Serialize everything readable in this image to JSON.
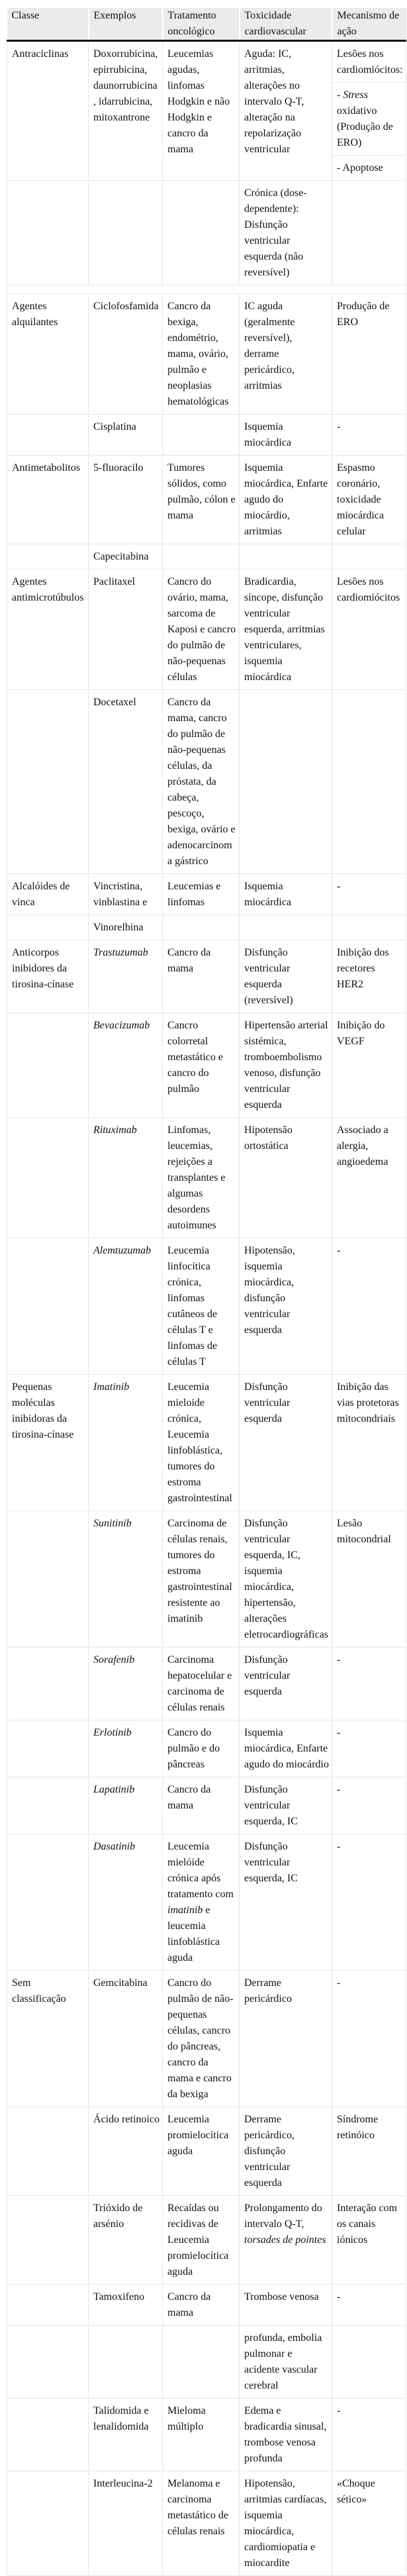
{
  "table": {
    "headers": [
      "Classe",
      "Exemplos",
      "Tratamento oncológico",
      "Toxicidade cardiovascular",
      "Mecanismo de ação"
    ],
    "rows": [
      {
        "cells": [
          "Antraciclinas",
          "Doxorrubicina, epirrubicina, daunorrubicina, idarrubicina, mitoxantrone",
          "Leucemias agudas, linfomas Hodgkin e não Hodgkin e cancro da mama",
          "Aguda: IC, arritmias, alterações no intervalo Q-T, alteração na repolarização ventricular",
          {
            "subcells": [
              {
                "segments": [
                  {
                    "text": "Lesões nos cardiomiócitos:",
                    "italic": false
                  }
                ]
              },
              {
                "segments": [
                  {
                    "text": "- ",
                    "italic": false
                  },
                  {
                    "text": "Stress",
                    "italic": true
                  },
                  {
                    "text": " oxidativo (Produção de ERO)",
                    "italic": false
                  }
                ]
              },
              {
                "segments": [
                  {
                    "text": "- Apoptose",
                    "italic": false
                  }
                ]
              }
            ]
          }
        ]
      },
      {
        "cells": [
          "",
          "",
          "",
          "Crónica (dose-dependente): Disfunção ventricular esquerda (não reversível)",
          ""
        ]
      },
      {
        "spacer": true,
        "cells": []
      },
      {
        "cells": [
          "Agentes alquilantes",
          "Ciclofosfamida",
          "Cancro da bexiga, endométrio, mama, ovário, pulmão e neoplasias hematológicas",
          "IC aguda (geralmente reversível), derrame pericárdico, arritmias",
          "Produção de ERO"
        ]
      },
      {
        "cells": [
          "",
          "Cisplatina",
          "",
          "Isquemia miocárdica",
          "-"
        ]
      },
      {
        "cells": [
          "Antimetabolitos",
          "5-fluoracilo",
          "Tumores sólidos, como pulmão, cólon e mama",
          "Isquemia miocárdica, Enfarte agudo do miocárdio, arritmias",
          "Espasmo coronário, toxicidade miocárdica celular"
        ]
      },
      {
        "cells": [
          "",
          "Capecitabina",
          "",
          "",
          ""
        ]
      },
      {
        "cells": [
          "Agentes antimicrotúbulos",
          "Paclitaxel",
          "Cancro do ovário, mama, sarcoma de Kaposi e cancro do pulmão de não-pequenas células",
          "Bradicardia, síncope, disfunção ventricular esquerda, arritmias ventriculares, isquemia miocárdica",
          "Lesões nos cardiomiócitos"
        ]
      },
      {
        "cells": [
          "",
          "Docetaxel",
          "Cancro da mama, cancro do pulmão de não-pequenas células, da próstata, da cabeça, pescoço, bexiga, ovário e adenocarcinoma gástrico",
          "",
          ""
        ]
      },
      {
        "cells": [
          "Alcalóides de vinca",
          "Vincristina, vinblastina e",
          "Leucemias e linfomas",
          "Isquemia miocárdica",
          "-"
        ]
      },
      {
        "cells": [
          "",
          "Vinorelbina",
          "",
          "",
          ""
        ]
      },
      {
        "cells": [
          "Anticorpos inibidores da tirosina-cínase",
          {
            "segments": [
              {
                "text": "Trastuzumab",
                "italic": true
              }
            ]
          },
          "Cancro da mama",
          "Disfunção ventricular esquerda (reversível)",
          "Inibição dos recetores HER2"
        ]
      },
      {
        "cells": [
          "",
          {
            "segments": [
              {
                "text": "Bevacizumab",
                "italic": true
              }
            ]
          },
          "Cancro colorretal metastático e cancro do pulmão",
          "Hipertensão arterial sistémica, tromboembolismo venoso, disfunção ventricular esquerda",
          "Inibição do VEGF"
        ]
      },
      {
        "cells": [
          "",
          {
            "segments": [
              {
                "text": "Rituximab",
                "italic": true
              }
            ]
          },
          "Linfomas, leucemias, rejeições a transplantes e algumas desordens autoimunes",
          "Hipotensão ortostática",
          "Associado a alergia, angioedema"
        ]
      },
      {
        "cells": [
          "",
          {
            "segments": [
              {
                "text": "Alemtuzumab",
                "italic": true
              }
            ]
          },
          "Leucemia linfocítica crónica, linfomas cutâneos de células T e linfomas de células T",
          "Hipotensão, isquemia miocárdica, disfunção ventricular esquerda",
          "-"
        ]
      },
      {
        "cells": [
          "Pequenas moléculas inibidoras da tirosina-cínase",
          {
            "segments": [
              {
                "text": "Imatinib",
                "italic": true
              }
            ]
          },
          "Leucemia mieloide crónica, Leucemia linfoblástica, tumores do estroma gastrointestinal",
          "Disfunção ventricular esquerda",
          "Inibição das vias protetoras mitocondriais"
        ]
      },
      {
        "cells": [
          "",
          {
            "segments": [
              {
                "text": "Sunitinib",
                "italic": true
              }
            ]
          },
          "Carcinoma de células renais, tumores do estroma gastrointestinal resistente ao imatinib",
          "Disfunção ventricular esquerda, IC, isquemia miocárdica, hipertensão, alterações eletrocardiográficas",
          "Lesão mitocondrial"
        ]
      },
      {
        "cells": [
          "",
          {
            "segments": [
              {
                "text": "Sorafenib",
                "italic": true
              }
            ]
          },
          "Carcinoma hepatocelular e carcinoma de células renais",
          "Disfunção ventricular esquerda",
          "-"
        ]
      },
      {
        "cells": [
          "",
          {
            "segments": [
              {
                "text": "Erlotinib",
                "italic": true
              }
            ]
          },
          "Cancro do pulmão e do pâncreas",
          "Isquemia miocárdica, Enfarte agudo do miocárdio",
          "-"
        ]
      },
      {
        "cells": [
          "",
          {
            "segments": [
              {
                "text": "Lapatinib",
                "italic": true
              }
            ]
          },
          "Cancro da mama",
          "Disfunção ventricular esquerda, IC",
          "-"
        ]
      },
      {
        "cells": [
          "",
          {
            "segments": [
              {
                "text": "Dasatinib",
                "italic": true
              }
            ]
          },
          {
            "segments": [
              {
                "text": "Leucemia mielóide crónica após tratamento com ",
                "italic": false
              },
              {
                "text": "imatinib",
                "italic": true
              },
              {
                "text": " e leucemia linfoblástica aguda",
                "italic": false
              }
            ]
          },
          "Disfunção ventricular esquerda, IC",
          "-"
        ]
      },
      {
        "cells": [
          "Sem classificação",
          "Gemcitabina",
          "Cancro do pulmão de não-pequenas células, cancro do pâncreas, cancro da mama e cancro da bexiga",
          "Derrame pericárdico",
          "-"
        ]
      },
      {
        "cells": [
          "",
          "Ácido retinoico",
          "Leucemia promielocítica aguda",
          "Derrame pericárdico, disfunção ventricular esquerda",
          "Síndrome retinóico"
        ]
      },
      {
        "cells": [
          "",
          "Trióxido de arsénio",
          "Recaídas ou recidivas de Leucemia promielocítica aguda",
          {
            "segments": [
              {
                "text": "Prolongamento do intervalo Q-T, ",
                "italic": false
              },
              {
                "text": "torsades de pointes",
                "italic": true
              }
            ]
          },
          "Interação com os canais iónicos"
        ]
      },
      {
        "cells": [
          "",
          "Tamoxifeno",
          "Cancro da mama",
          "Trombose venosa",
          "-"
        ]
      },
      {
        "cells": [
          "",
          "",
          "",
          "profunda, embolia pulmonar e acidente vascular cerebral",
          ""
        ]
      },
      {
        "cells": [
          "",
          "Talidomida e lenalidomida",
          "Mieloma múltiplo",
          "Edema e bradicardia sinusal, trombose venosa profunda",
          "-"
        ]
      },
      {
        "cells": [
          "",
          "Interleucina-2",
          "Melanoma e carcinoma metastático de células renais",
          "Hipotensão, arritmias cardíacas, isquemia miocárdica, cardiomiopatia e miocardite",
          "«Choque sético»"
        ]
      }
    ]
  }
}
